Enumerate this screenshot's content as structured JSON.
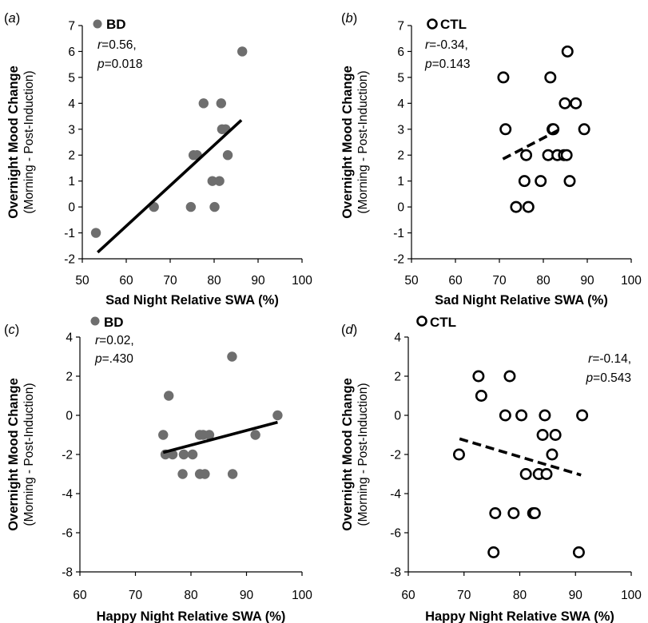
{
  "chart_data": [
    {
      "type": "scatter",
      "panel_label": "a",
      "xlabel": "Sad Night Relative SWA (%)",
      "ylabel": "Overnight Mood Change",
      "ylabel_sub": "(Morning - Post-Induction)",
      "xlim": [
        50,
        100
      ],
      "ylim": [
        -2,
        7
      ],
      "xticks": [
        "50",
        "60",
        "70",
        "80",
        "90",
        "100"
      ],
      "yticks": [
        "-2",
        "-1",
        "0",
        "1",
        "2",
        "3",
        "4",
        "5",
        "6",
        "7"
      ],
      "grid": false,
      "legend": {
        "label": "BD",
        "marker": "filled-circle",
        "placement": "top-left"
      },
      "stats": {
        "r_label": "r",
        "r_value": "=0.56,",
        "p_label": "p",
        "p_value": "=0.018",
        "placement": "top-left"
      },
      "series": [
        {
          "name": "BD",
          "color": "#6e6e6e",
          "filled": true,
          "x": [
            53.1,
            66.3,
            74.7,
            75.3,
            76.1,
            77.6,
            79.6,
            80.1,
            81.2,
            81.6,
            81.8,
            82.6,
            83.1,
            86.4
          ],
          "y": [
            -1,
            0,
            0,
            2,
            2,
            4,
            1,
            0,
            1,
            4,
            3,
            3,
            2,
            6
          ]
        }
      ],
      "trendline": {
        "style": "solid",
        "x": [
          53.5,
          86.2
        ],
        "y": [
          -1.75,
          3.35
        ]
      }
    },
    {
      "type": "scatter",
      "panel_label": "b",
      "xlabel": "Sad Night Relative SWA (%)",
      "ylabel": "Overnight Mood Change",
      "ylabel_sub": "(Morning - Post-Induction)",
      "xlim": [
        50,
        100
      ],
      "ylim": [
        -2,
        7
      ],
      "xticks": [
        "50",
        "60",
        "70",
        "80",
        "90",
        "100"
      ],
      "yticks": [
        "-2",
        "-1",
        "0",
        "1",
        "2",
        "3",
        "4",
        "5",
        "6",
        "7"
      ],
      "grid": false,
      "legend": {
        "label": "CTL",
        "marker": "open-circle",
        "placement": "top-left"
      },
      "stats": {
        "r_label": "r",
        "r_value": "=-0.34,",
        "p_label": "p",
        "p_value": "=0.143",
        "placement": "top-left"
      },
      "series": [
        {
          "name": "CTL",
          "color": "#000000",
          "filled": false,
          "x": [
            70.9,
            71.4,
            73.8,
            75.7,
            76.1,
            76.6,
            79.4,
            81.1,
            81.6,
            82.1,
            82.3,
            83.2,
            84.7,
            84.9,
            85.3,
            85.5,
            86.0,
            87.4,
            89.3
          ],
          "y": [
            5,
            3,
            0,
            1,
            2,
            0,
            1,
            2,
            5,
            3,
            3,
            2,
            2,
            4,
            2,
            6,
            1,
            4,
            3
          ]
        }
      ],
      "trendline": {
        "style": "dashed",
        "x": [
          70.8,
          83.3
        ],
        "y": [
          1.85,
          2.95
        ]
      }
    },
    {
      "type": "scatter",
      "panel_label": "c",
      "xlabel": "Happy Night Relative SWA (%)",
      "ylabel": "Overnight Mood Change",
      "ylabel_sub": "(Morning - Post-Induction)",
      "xlim": [
        60,
        100
      ],
      "ylim": [
        -8,
        4
      ],
      "xticks": [
        "60",
        "70",
        "80",
        "90",
        "100"
      ],
      "yticks": [
        "-8",
        "-6",
        "-4",
        "-2",
        "0",
        "2",
        "4"
      ],
      "grid": false,
      "legend": {
        "label": "BD",
        "marker": "filled-circle",
        "placement": "top-left"
      },
      "stats": {
        "r_label": "r",
        "r_value": "=0.02,",
        "p_label": "p",
        "p_value": "=.430",
        "placement": "top-left"
      },
      "series": [
        {
          "name": "BD",
          "color": "#6e6e6e",
          "filled": true,
          "x": [
            75.0,
            75.4,
            76.0,
            76.7,
            78.5,
            78.7,
            80.3,
            81.6,
            81.6,
            82.2,
            82.5,
            83.3,
            87.4,
            87.5,
            91.6,
            95.6
          ],
          "y": [
            -1,
            -2,
            1,
            -2,
            -3,
            -2,
            -2,
            -1,
            -3,
            -1,
            -3,
            -1,
            3,
            -3,
            -1,
            0
          ]
        }
      ],
      "trendline": {
        "style": "solid",
        "x": [
          75.0,
          95.6
        ],
        "y": [
          -1.9,
          -0.35
        ]
      }
    },
    {
      "type": "scatter",
      "panel_label": "d",
      "xlabel": "Happy Night Relative SWA (%)",
      "ylabel": "Overnight Mood Change",
      "ylabel_sub": "(Morning - Post-Induction)",
      "xlim": [
        60,
        100
      ],
      "ylim": [
        -8,
        4
      ],
      "xticks": [
        "60",
        "70",
        "80",
        "90",
        "100"
      ],
      "yticks": [
        "-8",
        "-6",
        "-4",
        "-2",
        "0",
        "2",
        "4"
      ],
      "grid": false,
      "legend": {
        "label": "CTL",
        "marker": "open-circle",
        "placement": "top-left"
      },
      "stats": {
        "r_label": "r",
        "r_value": "=-0.14,",
        "p_label": "p",
        "p_value": "=0.543",
        "placement": "top-right"
      },
      "series": [
        {
          "name": "CTL",
          "color": "#000000",
          "filled": false,
          "x": [
            69.1,
            72.6,
            73.1,
            75.3,
            75.6,
            77.4,
            78.2,
            78.9,
            80.3,
            81.1,
            82.4,
            82.7,
            83.4,
            84.1,
            84.5,
            84.8,
            85.8,
            86.4,
            90.6,
            91.2
          ],
          "y": [
            -2,
            2,
            1,
            -7,
            -5,
            0,
            2,
            -5,
            0,
            -3,
            -5,
            -5,
            -3,
            -1,
            0,
            -3,
            -2,
            -1,
            -7,
            0
          ]
        }
      ],
      "trendline": {
        "style": "dashed",
        "x": [
          69.2,
          91.0
        ],
        "y": [
          -1.2,
          -3.05
        ]
      }
    }
  ]
}
